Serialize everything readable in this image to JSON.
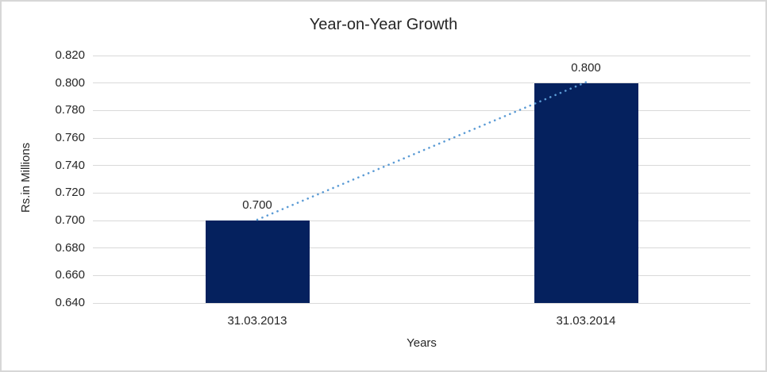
{
  "window": {
    "background_color": "#ffffff",
    "border_color": "#d7d7d7"
  },
  "chart_data": {
    "type": "bar",
    "title": "Year-on-Year Growth",
    "xlabel": "Years",
    "ylabel": "Rs.in Millions",
    "categories": [
      "31.03.2013",
      "31.03.2014"
    ],
    "values": [
      0.7,
      0.8
    ],
    "data_labels": [
      "0.700",
      "0.800"
    ],
    "ylim": [
      0.64,
      0.82
    ],
    "y_ticks": [
      "0.640",
      "0.660",
      "0.680",
      "0.700",
      "0.720",
      "0.740",
      "0.760",
      "0.780",
      "0.800",
      "0.820"
    ],
    "grid": "horizontal gridlines on",
    "legend": "none",
    "bar_color": "#05215e",
    "gridline_color": "#d9d9d9",
    "text_color": "#262626",
    "trendline": {
      "type": "linear",
      "style": "dotted",
      "color": "#5b9bd5",
      "from_value": 0.7,
      "to_value": 0.8
    }
  }
}
